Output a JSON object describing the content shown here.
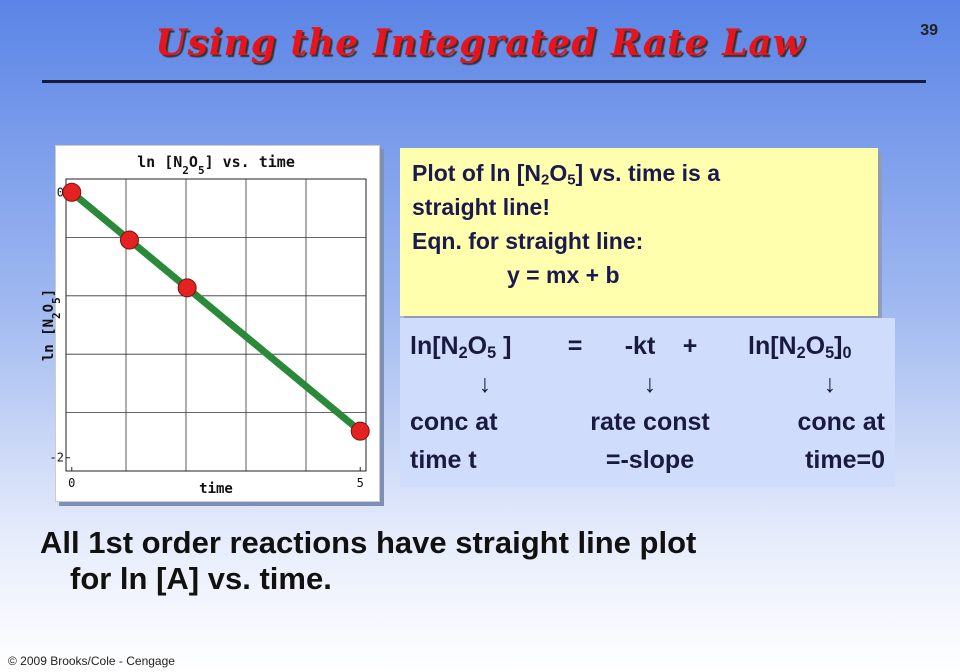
{
  "slide": {
    "page_number": "39",
    "title": "Using the Integrated Rate Law",
    "note_lines": [
      [
        "Plot of ln [N",
        "2",
        "O",
        "5",
        "] vs. time is a"
      ],
      [
        "straight line!"
      ],
      [
        "Eqn. for straight line:"
      ],
      [
        "y = mx + b"
      ]
    ],
    "equation": [
      [
        "ln[N",
        "2",
        "O",
        "5",
        " ]"
      ],
      [
        "="
      ],
      [
        "-kt"
      ],
      [
        "+"
      ],
      [
        "ln[N",
        "2",
        "O",
        "5",
        "]",
        "0"
      ]
    ],
    "arrows": [
      "↓",
      "↓",
      "↓"
    ],
    "explain_row1": [
      "conc at",
      "rate const",
      "conc at"
    ],
    "explain_row2": [
      "time t",
      "=-slope",
      "time=0"
    ],
    "summary": [
      "All 1st order reactions have straight line plot",
      "for  ln [A] vs. time."
    ],
    "footer": "© 2009 Brooks/Cole - Cengage"
  },
  "chart_data": {
    "type": "line",
    "title": [
      "ln [N",
      "2",
      "O",
      "5",
      "] vs. time"
    ],
    "x_label": "time",
    "y_label": [
      "ln [N",
      "2",
      "O",
      "5",
      "]"
    ],
    "x": [
      0,
      1,
      2,
      5
    ],
    "series": [
      {
        "color": "#2a8a3a",
        "marker_color": "#e42222",
        "values": [
          0,
          -0.36,
          -0.72,
          -1.8
        ]
      }
    ],
    "xlim": [
      -0.1,
      5.1
    ],
    "xticks": [
      0,
      5
    ],
    "xgrid": [
      0.94,
      1.98,
      3.02,
      4.06
    ],
    "ylim": [
      -2.1,
      0.1
    ],
    "yticks": [
      -2,
      0
    ],
    "ygrid": [
      -0.34,
      -0.78,
      -1.22,
      -1.66
    ],
    "grid": true
  }
}
